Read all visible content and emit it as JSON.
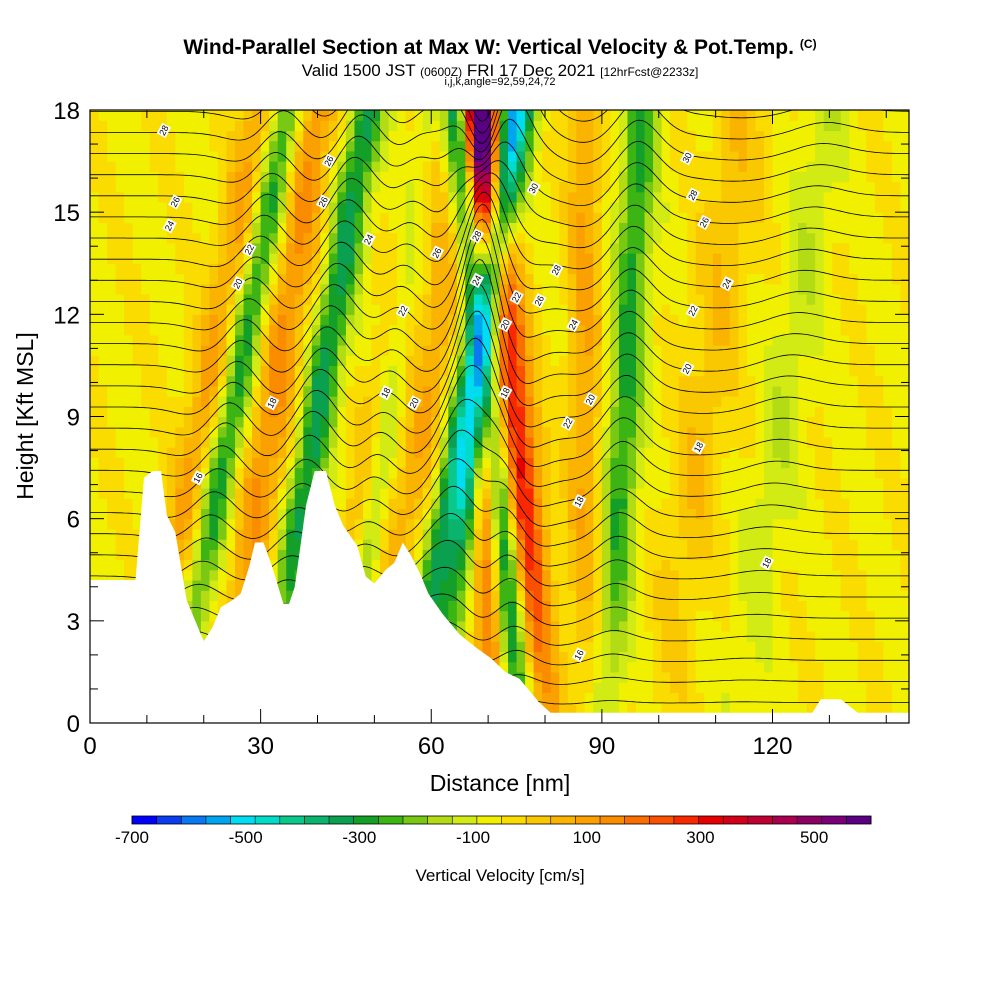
{
  "title": {
    "main": "Wind-Parallel Section at Max W: Vertical Velocity & Pot.Temp.",
    "mark": "(C)",
    "valid_prefix": "Valid 1500 JST",
    "valid_utc": "(0600Z)",
    "valid_date": "FRI 17 Dec 2021",
    "valid_fcst": "[12hrFcst@2233z]",
    "indices": "i,j,k,angle=92,59,24,72"
  },
  "chart_data": {
    "type": "heatmap",
    "xlabel": "Distance [nm]",
    "ylabel": "Height [Kft MSL]",
    "xlim": [
      0,
      144
    ],
    "ylim": [
      0,
      18
    ],
    "x_ticks": [
      0,
      30,
      60,
      90,
      120
    ],
    "y_ticks": [
      0,
      3,
      6,
      9,
      12,
      15,
      18
    ],
    "colorbar": {
      "label": "Vertical Velocity [cm/s]",
      "ticks": [
        "-700",
        "-500",
        "-300",
        "-100",
        "100",
        "300",
        "500"
      ],
      "tick_values": [
        -700,
        -500,
        -300,
        -100,
        100,
        300,
        500
      ],
      "min": -700,
      "max": 600,
      "bin_width": 50,
      "colors": [
        "#0000ff",
        "#0a3cf0",
        "#0a78f0",
        "#00a5f0",
        "#00dcf0",
        "#00dcc8",
        "#0ac88c",
        "#0ab46e",
        "#0ba050",
        "#14a028",
        "#3cb414",
        "#78c814",
        "#b4dc14",
        "#d2eb14",
        "#f0f000",
        "#fadc00",
        "#fac800",
        "#fab400",
        "#faa000",
        "#fa8c00",
        "#fa6e00",
        "#fa5000",
        "#fa2800",
        "#e60000",
        "#d20019",
        "#be0032",
        "#aa0050",
        "#8c0064",
        "#780078",
        "#5a0082"
      ]
    },
    "terrain": [
      [
        0,
        4.2
      ],
      [
        8,
        4.2
      ],
      [
        9.5,
        7.2
      ],
      [
        11,
        7.4
      ],
      [
        12.5,
        7.4
      ],
      [
        13.5,
        6.1
      ],
      [
        15,
        5.6
      ],
      [
        17,
        3.6
      ],
      [
        18.5,
        3.0
      ],
      [
        20,
        2.4
      ],
      [
        21.5,
        2.8
      ],
      [
        23,
        3.4
      ],
      [
        25,
        3.6
      ],
      [
        26.5,
        3.8
      ],
      [
        28,
        4.6
      ],
      [
        29,
        5.3
      ],
      [
        30.5,
        5.3
      ],
      [
        32,
        4.6
      ],
      [
        34,
        3.5
      ],
      [
        35,
        3.5
      ],
      [
        36,
        4.0
      ],
      [
        38,
        6.4
      ],
      [
        39.5,
        7.4
      ],
      [
        41.5,
        7.4
      ],
      [
        43,
        6.4
      ],
      [
        44.5,
        5.8
      ],
      [
        47,
        5.2
      ],
      [
        48.5,
        4.3
      ],
      [
        50,
        4.1
      ],
      [
        52,
        4.5
      ],
      [
        53.5,
        4.7
      ],
      [
        55,
        5.3
      ],
      [
        56.5,
        4.9
      ],
      [
        58,
        4.4
      ],
      [
        59.5,
        3.8
      ],
      [
        62,
        3.2
      ],
      [
        65,
        2.6
      ],
      [
        68,
        2.2
      ],
      [
        70.5,
        1.9
      ],
      [
        73,
        1.5
      ],
      [
        75.5,
        1.3
      ],
      [
        77,
        1.0
      ],
      [
        79,
        0.6
      ],
      [
        81,
        0.3
      ],
      [
        82,
        0.3
      ],
      [
        89,
        0.3
      ],
      [
        110,
        0.3
      ],
      [
        127,
        0.3
      ],
      [
        128.5,
        0.7
      ],
      [
        132,
        0.7
      ],
      [
        135,
        0.3
      ],
      [
        138,
        0.3
      ],
      [
        139,
        0.3
      ],
      [
        142,
        0.3
      ],
      [
        144,
        0.3
      ]
    ],
    "updraft_bands": [
      {
        "x0": 10,
        "tilt": 0.5,
        "w": 3.5,
        "amp": 180
      },
      {
        "x0": 24,
        "tilt": 0.4,
        "w": 4.0,
        "amp": 220
      },
      {
        "x0": 41,
        "tilt": 0.5,
        "w": 3.0,
        "amp": 200
      },
      {
        "x0": 50,
        "tilt": 0.45,
        "w": 4.0,
        "amp": 150
      },
      {
        "x0": 80,
        "tilt": -0.28,
        "w": 3.5,
        "amp": 480
      },
      {
        "x0": 71,
        "tilt": -0.08,
        "w": 2.5,
        "amp": 450
      },
      {
        "x0": 87,
        "tilt": 0.0,
        "w": 3.0,
        "amp": 160
      },
      {
        "x0": 101,
        "tilt": 0.35,
        "w": 5.0,
        "amp": 100
      }
    ],
    "downdraft_bands": [
      {
        "x0": 15,
        "tilt": 0.5,
        "w": 3.0,
        "amp": -280
      },
      {
        "x0": 31,
        "tilt": 0.45,
        "w": 3.0,
        "amp": -320
      },
      {
        "x0": 44,
        "tilt": 0.4,
        "w": 2.5,
        "amp": -240
      },
      {
        "x0": 56,
        "tilt": 0.5,
        "w": 3.0,
        "amp": -360
      },
      {
        "x0": 76,
        "tilt": -0.28,
        "w": 2.8,
        "amp": -560
      },
      {
        "x0": 62,
        "tilt": 0.3,
        "w": 2.5,
        "amp": -300
      },
      {
        "x0": 91,
        "tilt": 0.15,
        "w": 3.0,
        "amp": -260
      },
      {
        "x0": 114,
        "tilt": 0.4,
        "w": 4.0,
        "amp": -80
      }
    ],
    "contour_labels": [
      {
        "text": "28",
        "x": 13,
        "y": 17.4
      },
      {
        "text": "26",
        "x": 15,
        "y": 15.3
      },
      {
        "text": "24",
        "x": 14,
        "y": 14.6
      },
      {
        "text": "26",
        "x": 42,
        "y": 16.5
      },
      {
        "text": "26",
        "x": 41,
        "y": 15.3
      },
      {
        "text": "22",
        "x": 28,
        "y": 13.9
      },
      {
        "text": "20",
        "x": 26,
        "y": 12.9
      },
      {
        "text": "24",
        "x": 49,
        "y": 14.2
      },
      {
        "text": "26",
        "x": 61,
        "y": 13.8
      },
      {
        "text": "28",
        "x": 68,
        "y": 14.3
      },
      {
        "text": "24",
        "x": 68,
        "y": 13.0
      },
      {
        "text": "22",
        "x": 55,
        "y": 12.1
      },
      {
        "text": "22",
        "x": 75,
        "y": 12.5
      },
      {
        "text": "20",
        "x": 73,
        "y": 11.7
      },
      {
        "text": "30",
        "x": 78,
        "y": 15.7
      },
      {
        "text": "26",
        "x": 79,
        "y": 12.4
      },
      {
        "text": "28",
        "x": 82,
        "y": 13.3
      },
      {
        "text": "24",
        "x": 85,
        "y": 11.7
      },
      {
        "text": "18",
        "x": 32,
        "y": 9.4
      },
      {
        "text": "18",
        "x": 52,
        "y": 9.7
      },
      {
        "text": "20",
        "x": 57,
        "y": 9.4
      },
      {
        "text": "18",
        "x": 73,
        "y": 9.7
      },
      {
        "text": "22",
        "x": 84,
        "y": 8.8
      },
      {
        "text": "20",
        "x": 88,
        "y": 9.5
      },
      {
        "text": "18",
        "x": 86,
        "y": 6.5
      },
      {
        "text": "16",
        "x": 19,
        "y": 7.2
      },
      {
        "text": "16",
        "x": 86,
        "y": 2.0
      },
      {
        "text": "30",
        "x": 105,
        "y": 16.6
      },
      {
        "text": "28",
        "x": 106,
        "y": 15.5
      },
      {
        "text": "26",
        "x": 108,
        "y": 14.7
      },
      {
        "text": "24",
        "x": 112,
        "y": 12.9
      },
      {
        "text": "22",
        "x": 106,
        "y": 12.1
      },
      {
        "text": "20",
        "x": 105,
        "y": 10.4
      },
      {
        "text": "18",
        "x": 107,
        "y": 8.1
      },
      {
        "text": "18",
        "x": 119,
        "y": 4.7
      }
    ]
  }
}
